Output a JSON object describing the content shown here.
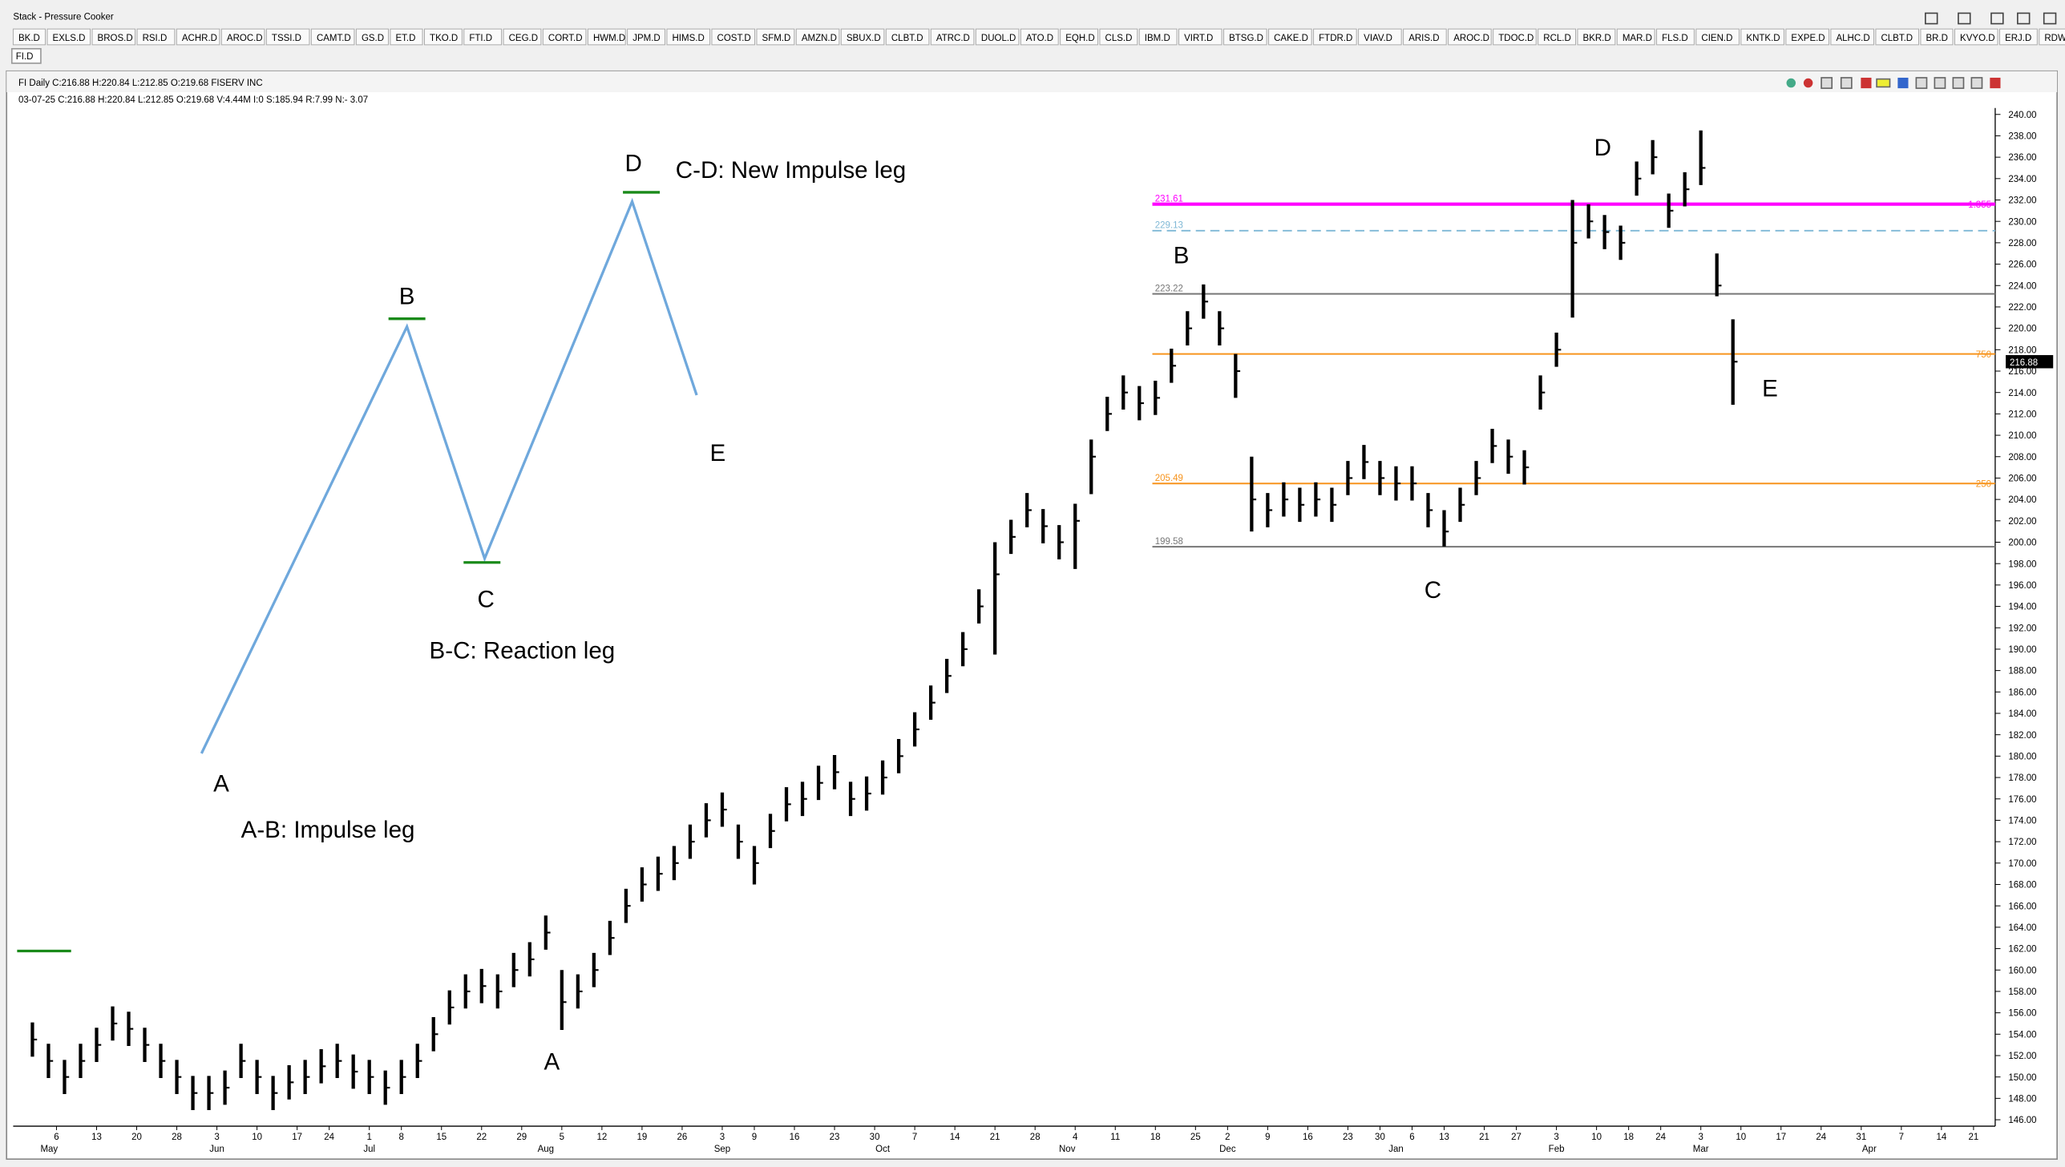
{
  "window": {
    "title": "Stack - Pressure Cooker",
    "tabs": [
      "BK.D",
      "EXLS.D",
      "BROS.D",
      "RSI.D",
      "ACHR.D",
      "AROC.D",
      "TSSI.D",
      "CAMT.D",
      "GS.D",
      "ET.D",
      "TKO.D",
      "FTI.D",
      "CEG.D",
      "CORT.D",
      "HWM.D",
      "JPM.D",
      "HIMS.D",
      "COST.D",
      "SFM.D",
      "AMZN.D",
      "SBUX.D",
      "CLBT.D",
      "ATRC.D",
      "DUOL.D",
      "ATO.D",
      "EQH.D",
      "CLS.D",
      "IBM.D",
      "VIRT.D",
      "BTSG.D",
      "CAKE.D",
      "FTDR.D",
      "VIAV.D",
      "ARIS.D",
      "AROC.D",
      "TDOC.D",
      "RCL.D",
      "BKR.D",
      "MAR.D",
      "FLS.D",
      "CIEN.D",
      "KNTK.D",
      "EXPE.D",
      "ALHC.D",
      "CLBT.D",
      "BR.D",
      "KVYO.D",
      "ERJ.D",
      "RDW.D"
    ],
    "active_tab": "FI.D"
  },
  "header": {
    "line1": "FI Daily  C:216.88  H:220.84  L:212.85  O:219.68  FISERV INC",
    "line2": "03-07-25  C:216.88  H:220.84  L:212.85  O:219.68  V:4.44M  I:0  S:185.94  R:7.99  N:- 3.07"
  },
  "annotations": [
    "A",
    "B",
    "C",
    "D",
    "E",
    "A-B: Impulse leg",
    "B-C: Reaction leg",
    "C-D: New Impulse leg",
    "A",
    "B",
    "C",
    "D",
    "E"
  ],
  "chart_data": {
    "type": "ohlc",
    "color": "#000000",
    "x": [
      0,
      2,
      4,
      6,
      8,
      10,
      12,
      14,
      16,
      18,
      20,
      22,
      24,
      26,
      28,
      30,
      32,
      34,
      36,
      38,
      40,
      42,
      44,
      46,
      48,
      50,
      52,
      54,
      56,
      58,
      60,
      62,
      64,
      66,
      68,
      70,
      72,
      74,
      76,
      78,
      80,
      82,
      84,
      86,
      88,
      90,
      92,
      94,
      96,
      98,
      100,
      102,
      104,
      106,
      108,
      110,
      112,
      114,
      116,
      118,
      120,
      122,
      124,
      126,
      128,
      130,
      132,
      134,
      136,
      138,
      140,
      142,
      144,
      146,
      148,
      150,
      152,
      154,
      156,
      158,
      160,
      162,
      164,
      166,
      168,
      170,
      172,
      174,
      176,
      178,
      180,
      182,
      184,
      186,
      188,
      190,
      192,
      194,
      196,
      198,
      200,
      202,
      204,
      206,
      208,
      210,
      212
    ],
    "high": [
      155.1,
      153.1,
      151.6,
      153.1,
      154.6,
      156.6,
      156.1,
      154.6,
      153.1,
      151.6,
      150.1,
      150.1,
      150.6,
      153.1,
      151.6,
      150.1,
      151.1,
      151.6,
      152.6,
      153.1,
      152.1,
      151.6,
      150.6,
      151.6,
      153.1,
      155.6,
      158.1,
      159.6,
      160.1,
      159.6,
      161.6,
      162.6,
      165.1,
      160,
      159.6,
      161.6,
      164.6,
      167.6,
      169.6,
      170.6,
      171.6,
      173.6,
      175.6,
      176.6,
      173.6,
      171.6,
      174.6,
      177.1,
      177.6,
      179.1,
      180.1,
      177.6,
      178.1,
      179.6,
      181.6,
      184.1,
      186.6,
      189.1,
      191.6,
      195.6,
      200,
      202.1,
      204.6,
      203.1,
      201.6,
      203.6,
      209.6,
      213.6,
      215.6,
      214.6,
      215.1,
      218.1,
      221.6,
      224.1,
      221.6,
      217.6,
      208,
      204.6,
      205.6,
      205.1,
      205.6,
      205.1,
      207.6,
      209.1,
      207.6,
      207.1,
      207.1,
      204.6,
      203,
      205.1,
      207.6,
      210.6,
      209.6,
      208.6,
      215.6,
      219.6,
      232,
      231.6,
      230.6,
      229.6,
      235.6,
      237.6,
      232.6,
      234.6,
      238.5,
      227,
      220.84
    ],
    "low": [
      151.9,
      149.9,
      148.4,
      149.9,
      151.4,
      153.4,
      152.9,
      151.4,
      149.9,
      148.4,
      146.9,
      146.9,
      147.4,
      149.9,
      148.4,
      146.9,
      147.9,
      148.4,
      149.4,
      149.9,
      148.9,
      148.4,
      147.4,
      148.4,
      149.9,
      152.4,
      154.9,
      156.4,
      156.9,
      156.4,
      158.4,
      159.4,
      161.9,
      154.4,
      156.4,
      158.4,
      161.4,
      164.4,
      166.4,
      167.4,
      168.4,
      170.4,
      172.4,
      173.4,
      170.4,
      168,
      171.4,
      173.9,
      174.4,
      175.9,
      176.9,
      174.4,
      174.9,
      176.4,
      178.4,
      180.9,
      183.4,
      185.9,
      188.4,
      192.4,
      189.5,
      198.9,
      201.4,
      199.9,
      198.4,
      197.5,
      204.5,
      210.4,
      212.4,
      211.4,
      211.9,
      214.9,
      218.4,
      220.9,
      218.4,
      213.5,
      201,
      201.4,
      202.4,
      201.9,
      202.4,
      201.9,
      204.4,
      205.9,
      204.4,
      203.9,
      203.9,
      201.4,
      199.6,
      201.9,
      204.4,
      207.4,
      206.4,
      205.4,
      212.4,
      216.4,
      221,
      228.4,
      227.4,
      226.4,
      232.4,
      234.4,
      229.4,
      231.4,
      233.4,
      223,
      212.85
    ],
    "close": [
      153.5,
      151.5,
      150,
      151.5,
      153,
      155,
      154.5,
      153,
      151.5,
      150,
      148.5,
      148.5,
      149,
      151.5,
      150,
      148.5,
      149.5,
      150,
      151,
      151.5,
      150.5,
      150,
      149,
      150,
      151.5,
      154,
      156.5,
      158,
      158.5,
      158,
      160,
      161,
      163.5,
      157,
      158,
      160,
      163,
      166,
      168,
      169,
      170,
      172,
      174,
      175,
      172,
      170,
      173,
      175.5,
      176,
      177.5,
      178.5,
      176,
      176.5,
      178,
      180,
      182.5,
      185,
      187.5,
      190,
      194,
      197,
      200.5,
      203,
      201.5,
      200,
      202,
      208,
      212,
      214,
      213,
      213.5,
      216.5,
      220,
      222.5,
      220,
      216,
      204,
      203,
      204,
      203.5,
      204,
      203.5,
      206,
      207.5,
      206,
      205.5,
      205.5,
      203,
      201,
      203.5,
      206,
      209,
      208,
      207,
      214,
      218,
      228,
      230,
      229,
      228,
      234,
      236,
      231,
      233,
      235,
      224,
      216.88
    ],
    "xlim": [
      -2.4,
      244.7
    ],
    "ylim": [
      145.4,
      240.6
    ],
    "yticks": [
      {
        "value": 146,
        "label": "146.00"
      },
      {
        "value": 148,
        "label": "148.00"
      },
      {
        "value": 150,
        "label": "150.00"
      },
      {
        "value": 152,
        "label": "152.00"
      },
      {
        "value": 154,
        "label": "154.00"
      },
      {
        "value": 156,
        "label": "156.00"
      },
      {
        "value": 158,
        "label": "158.00"
      },
      {
        "value": 160,
        "label": "160.00"
      },
      {
        "value": 162,
        "label": "162.00"
      },
      {
        "value": 164,
        "label": "164.00"
      },
      {
        "value": 166,
        "label": "166.00"
      },
      {
        "value": 168,
        "label": "168.00"
      },
      {
        "value": 170,
        "label": "170.00"
      },
      {
        "value": 172,
        "label": "172.00"
      },
      {
        "value": 174,
        "label": "174.00"
      },
      {
        "value": 176,
        "label": "176.00"
      },
      {
        "value": 178,
        "label": "178.00"
      },
      {
        "value": 180,
        "label": "180.00"
      },
      {
        "value": 182,
        "label": "182.00"
      },
      {
        "value": 184,
        "label": "184.00"
      },
      {
        "value": 186,
        "label": "186.00"
      },
      {
        "value": 188,
        "label": "188.00"
      },
      {
        "value": 190,
        "label": "190.00"
      },
      {
        "value": 192,
        "label": "192.00"
      },
      {
        "value": 194,
        "label": "194.00"
      },
      {
        "value": 196,
        "label": "196.00"
      },
      {
        "value": 198,
        "label": "198.00"
      },
      {
        "value": 200,
        "label": "200.00"
      },
      {
        "value": 202,
        "label": "202.00"
      },
      {
        "value": 204,
        "label": "204.00"
      },
      {
        "value": 206,
        "label": "206.00"
      },
      {
        "value": 208,
        "label": "208.00"
      },
      {
        "value": 210,
        "label": "210.00"
      },
      {
        "value": 212,
        "label": "212.00"
      },
      {
        "value": 214,
        "label": "214.00"
      },
      {
        "value": 216,
        "label": "216.00"
      },
      {
        "value": 218,
        "label": "218.00"
      },
      {
        "value": 220,
        "label": "220.00"
      },
      {
        "value": 222,
        "label": "222.00"
      },
      {
        "value": 224,
        "label": "224.00"
      },
      {
        "value": 226,
        "label": "226.00"
      },
      {
        "value": 228,
        "label": "228.00"
      },
      {
        "value": 230,
        "label": "230.00"
      },
      {
        "value": 232,
        "label": "232.00"
      },
      {
        "value": 234,
        "label": "234.00"
      },
      {
        "value": 236,
        "label": "236.00"
      },
      {
        "value": 238,
        "label": "238.00"
      },
      {
        "value": 240,
        "label": "240.00"
      }
    ],
    "xticks": [
      {
        "value": 3,
        "label": "6"
      },
      {
        "value": 8,
        "label": "13"
      },
      {
        "value": 13,
        "label": "20"
      },
      {
        "value": 18,
        "label": "28"
      },
      {
        "value": 23,
        "label": "3"
      },
      {
        "value": 28,
        "label": "10"
      },
      {
        "value": 33,
        "label": "17"
      },
      {
        "value": 37,
        "label": "24"
      },
      {
        "value": 42,
        "label": "1"
      },
      {
        "value": 46,
        "label": "8"
      },
      {
        "value": 51,
        "label": "15"
      },
      {
        "value": 56,
        "label": "22"
      },
      {
        "value": 61,
        "label": "29"
      },
      {
        "value": 66,
        "label": "5"
      },
      {
        "value": 71,
        "label": "12"
      },
      {
        "value": 76,
        "label": "19"
      },
      {
        "value": 81,
        "label": "26"
      },
      {
        "value": 86,
        "label": "3"
      },
      {
        "value": 90,
        "label": "9"
      },
      {
        "value": 95,
        "label": "16"
      },
      {
        "value": 100,
        "label": "23"
      },
      {
        "value": 105,
        "label": "30"
      },
      {
        "value": 110,
        "label": "7"
      },
      {
        "value": 115,
        "label": "14"
      },
      {
        "value": 120,
        "label": "21"
      },
      {
        "value": 125,
        "label": "28"
      },
      {
        "value": 130,
        "label": "4"
      },
      {
        "value": 135,
        "label": "11"
      },
      {
        "value": 140,
        "label": "18"
      },
      {
        "value": 145,
        "label": "25"
      },
      {
        "value": 149,
        "label": "2"
      },
      {
        "value": 154,
        "label": "9"
      },
      {
        "value": 159,
        "label": "16"
      },
      {
        "value": 164,
        "label": "23"
      },
      {
        "value": 168,
        "label": "30"
      },
      {
        "value": 172,
        "label": "6"
      },
      {
        "value": 176,
        "label": "13"
      },
      {
        "value": 181,
        "label": "21"
      },
      {
        "value": 185,
        "label": "27"
      },
      {
        "value": 190,
        "label": "3"
      },
      {
        "value": 195,
        "label": "10"
      },
      {
        "value": 199,
        "label": "18"
      },
      {
        "value": 203,
        "label": "24"
      },
      {
        "value": 208,
        "label": "3"
      },
      {
        "value": 213,
        "label": "10"
      },
      {
        "value": 218,
        "label": "17"
      },
      {
        "value": 223,
        "label": "24"
      },
      {
        "value": 228,
        "label": "31"
      },
      {
        "value": 233,
        "label": "7"
      },
      {
        "value": 238,
        "label": "14"
      },
      {
        "value": 242,
        "label": "21"
      }
    ],
    "month_ticks": [
      {
        "value": 1,
        "label": "May"
      },
      {
        "value": 23,
        "label": "Jun"
      },
      {
        "value": 42,
        "label": "Jul"
      },
      {
        "value": 64,
        "label": "Aug"
      },
      {
        "value": 86,
        "label": "Sep"
      },
      {
        "value": 106,
        "label": "Oct"
      },
      {
        "value": 129,
        "label": "Nov"
      },
      {
        "value": 149,
        "label": "Dec"
      },
      {
        "value": 170,
        "label": "Jan"
      },
      {
        "value": 190,
        "label": "Feb"
      },
      {
        "value": 208,
        "label": "Mar"
      },
      {
        "value": 229,
        "label": "Apr"
      }
    ],
    "levels": [
      {
        "value": 231.61,
        "label": "231.61",
        "ratio": "1.355",
        "color": "#ff00ff"
      },
      {
        "value": 229.13,
        "label": "229.13",
        "color": "#7fb8d6"
      },
      {
        "value": 223.22,
        "label": "223.22",
        "color": "#777777"
      },
      {
        "value": 217.6,
        "ratio": "750",
        "color": "#f7941d"
      },
      {
        "value": 205.49,
        "label": "205.49",
        "ratio": "250",
        "color": "#f7941d"
      },
      {
        "value": 199.58,
        "label": "199.58",
        "color": "#777777"
      }
    ]
  }
}
